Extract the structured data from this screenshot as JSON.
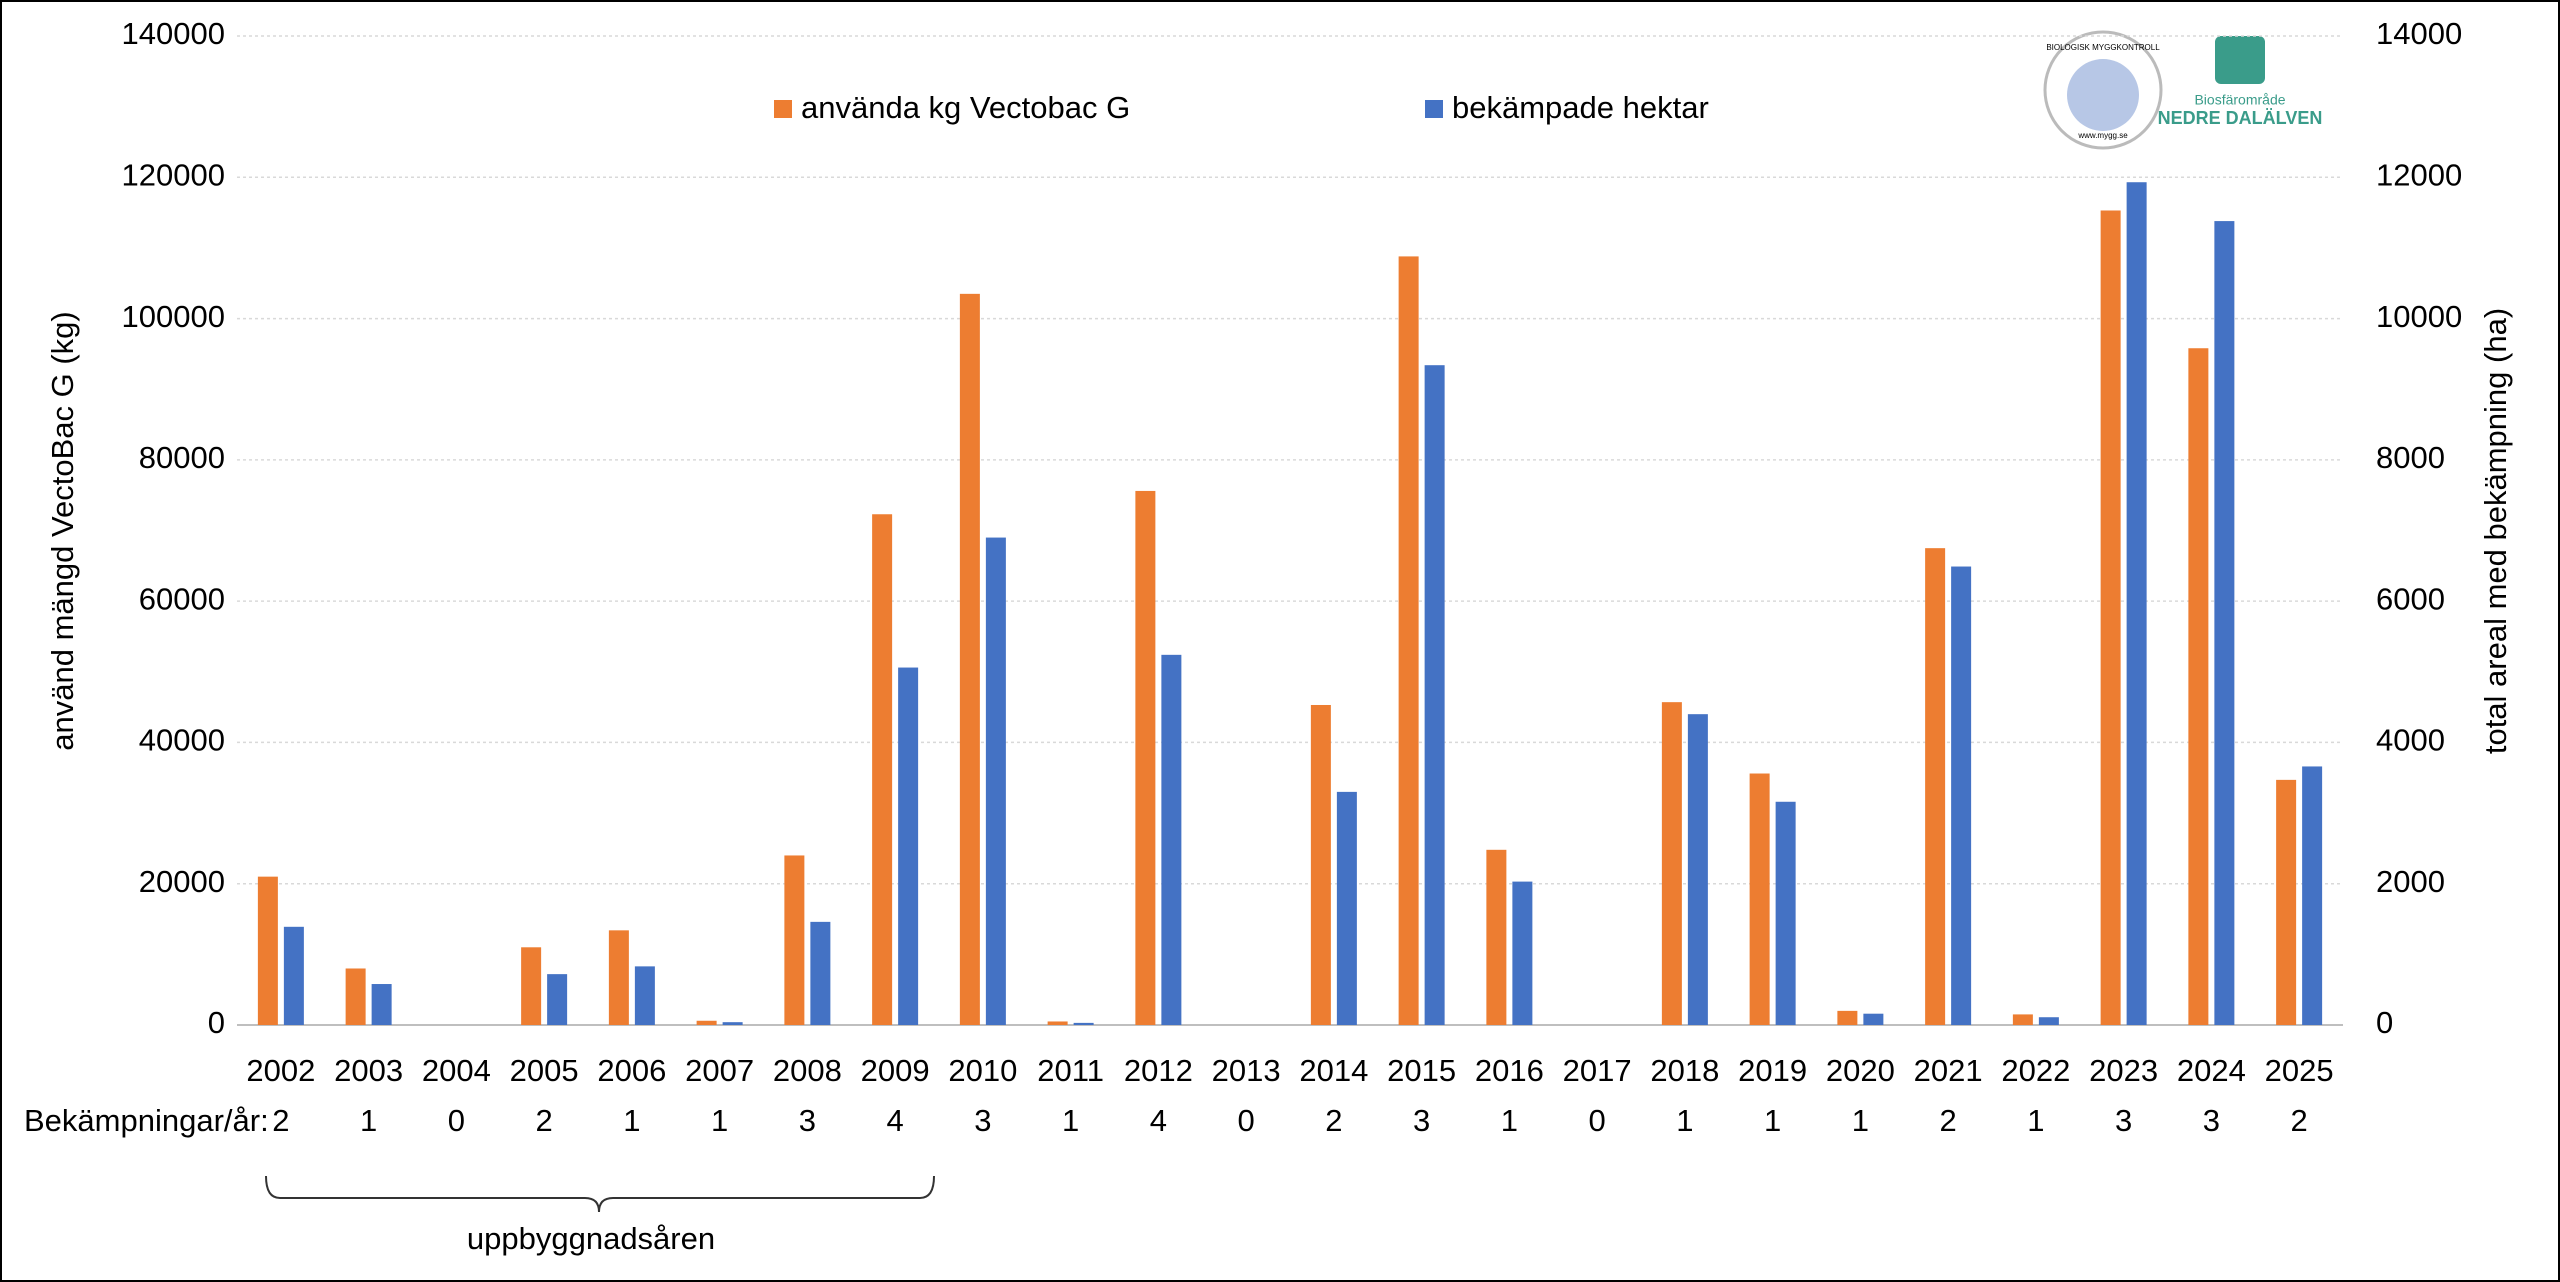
{
  "chart_data": {
    "type": "bar",
    "categories": [
      "2002",
      "2003",
      "2004",
      "2005",
      "2006",
      "2007",
      "2008",
      "2009",
      "2010",
      "2011",
      "2012",
      "2013",
      "2014",
      "2015",
      "2016",
      "2017",
      "2018",
      "2019",
      "2020",
      "2021",
      "2022",
      "2023",
      "2024",
      "2025"
    ],
    "series": [
      {
        "name": "använda kg Vectobac G",
        "color": "#ed7d31",
        "axis": "y",
        "values": [
          21000,
          8000,
          0,
          11000,
          13400,
          600,
          24000,
          72300,
          103500,
          500,
          75600,
          0,
          45300,
          108800,
          24800,
          0,
          45700,
          35600,
          2000,
          67500,
          1500,
          115300,
          95800,
          34700
        ]
      },
      {
        "name": "bekämpade hektar",
        "color": "#4472c4",
        "axis": "y2",
        "values": [
          1390,
          580,
          0,
          720,
          830,
          40,
          1460,
          5060,
          6900,
          30,
          5240,
          0,
          3300,
          9340,
          2030,
          0,
          4400,
          3160,
          160,
          6490,
          110,
          11930,
          11380,
          3660
        ]
      }
    ],
    "ylabel": "använd mängd VectoBac G (kg)",
    "y2label": "total areal med bekämpning (ha)",
    "ylim": [
      0,
      140000
    ],
    "yticks": [
      0,
      20000,
      40000,
      60000,
      80000,
      100000,
      120000,
      140000
    ],
    "y2lim": [
      0,
      14000
    ],
    "y2ticks": [
      0,
      2000,
      4000,
      6000,
      8000,
      10000,
      12000,
      14000
    ],
    "grid": true,
    "counts_label": "Bekämpningar/år:",
    "counts": [
      2,
      1,
      0,
      2,
      1,
      1,
      3,
      4,
      3,
      1,
      4,
      0,
      2,
      3,
      1,
      0,
      1,
      1,
      1,
      2,
      1,
      3,
      3,
      2
    ],
    "bracket_label": "uppbyggnadsåren"
  },
  "logos": {
    "left_ring": "BIOLOGISK MYGGKONTROLL",
    "left_url": "www.mygg.se",
    "right_top": "Biosfärområde",
    "right_bottom": "NEDRE DALÄLVEN"
  }
}
